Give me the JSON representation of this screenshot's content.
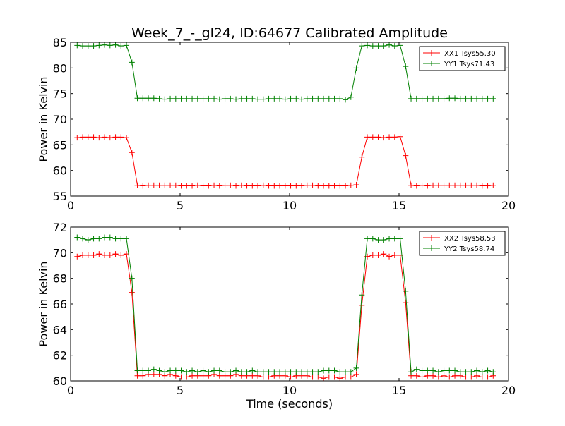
{
  "chart_data": [
    {
      "type": "line",
      "title": "Week_7_-_gl24, ID:64677 Calibrated Amplitude",
      "xlabel": "",
      "ylabel": "Power in Kelvin",
      "xlim": [
        0,
        20
      ],
      "ylim": [
        55,
        85
      ],
      "xticks": [
        "0",
        "5",
        "10",
        "15",
        "20"
      ],
      "yticks": [
        "55",
        "60",
        "65",
        "70",
        "75",
        "80",
        "85"
      ],
      "grid": false,
      "legend_position": "top-right",
      "x": [
        0.3,
        0.55,
        0.8,
        1.05,
        1.3,
        1.55,
        1.8,
        2.05,
        2.3,
        2.55,
        2.8,
        3.05,
        3.3,
        3.55,
        3.8,
        4.05,
        4.3,
        4.55,
        4.8,
        5.05,
        5.3,
        5.55,
        5.8,
        6.05,
        6.3,
        6.55,
        6.8,
        7.05,
        7.3,
        7.55,
        7.8,
        8.05,
        8.3,
        8.55,
        8.8,
        9.05,
        9.3,
        9.55,
        9.8,
        10.05,
        10.3,
        10.55,
        10.8,
        11.05,
        11.3,
        11.55,
        11.8,
        12.05,
        12.3,
        12.55,
        12.8,
        13.05,
        13.3,
        13.55,
        13.8,
        14.05,
        14.3,
        14.55,
        14.8,
        15.05,
        15.3,
        15.55,
        15.8,
        16.05,
        16.3,
        16.55,
        16.8,
        17.05,
        17.3,
        17.55,
        17.8,
        18.05,
        18.3,
        18.55,
        18.8,
        19.05,
        19.3
      ],
      "series": [
        {
          "name": "XX1 Tsys55.30",
          "color": "#ff0000",
          "values": [
            66.4,
            66.5,
            66.5,
            66.5,
            66.4,
            66.5,
            66.4,
            66.5,
            66.5,
            66.4,
            63.5,
            57.1,
            57.0,
            57.1,
            57.1,
            57.1,
            57.1,
            57.1,
            57.1,
            57.0,
            57.0,
            57.0,
            57.1,
            57.0,
            57.0,
            57.1,
            57.0,
            57.1,
            57.1,
            57.0,
            57.1,
            57.0,
            57.0,
            57.0,
            57.1,
            57.0,
            57.0,
            57.0,
            57.0,
            57.0,
            57.0,
            57.0,
            57.1,
            57.1,
            57.0,
            57.0,
            57.0,
            57.0,
            57.0,
            57.0,
            57.1,
            57.2,
            62.6,
            66.5,
            66.5,
            66.5,
            66.4,
            66.5,
            66.5,
            66.6,
            62.9,
            57.1,
            57.0,
            57.1,
            57.0,
            57.1,
            57.1,
            57.1,
            57.1,
            57.1,
            57.1,
            57.1,
            57.1,
            57.1,
            57.0,
            57.0,
            57.1
          ]
        },
        {
          "name": "YY1 Tsys71.43",
          "color": "#008000",
          "values": [
            84.4,
            84.3,
            84.3,
            84.3,
            84.4,
            84.5,
            84.4,
            84.5,
            84.3,
            84.4,
            81.1,
            74.1,
            74.1,
            74.1,
            74.1,
            74.0,
            73.9,
            74.0,
            74.0,
            74.0,
            74.0,
            74.0,
            74.0,
            74.0,
            74.0,
            74.0,
            73.9,
            74.0,
            74.0,
            73.9,
            74.0,
            74.0,
            74.0,
            73.9,
            73.9,
            74.0,
            74.0,
            74.0,
            73.9,
            74.0,
            74.0,
            73.9,
            74.0,
            74.0,
            74.0,
            74.0,
            74.0,
            74.0,
            74.0,
            73.8,
            74.3,
            80.0,
            84.3,
            84.4,
            84.3,
            84.3,
            84.3,
            84.5,
            84.3,
            84.4,
            80.3,
            74.0,
            74.0,
            74.0,
            74.0,
            74.0,
            74.0,
            74.0,
            74.1,
            74.1,
            74.0,
            74.0,
            74.0,
            74.0,
            74.0,
            74.0,
            74.0
          ]
        }
      ]
    },
    {
      "type": "line",
      "title": "",
      "xlabel": "Time (seconds)",
      "ylabel": "Power in Kelvin",
      "xlim": [
        0,
        20
      ],
      "ylim": [
        60,
        72
      ],
      "xticks": [
        "0",
        "5",
        "10",
        "15",
        "20"
      ],
      "yticks": [
        "60",
        "62",
        "64",
        "66",
        "68",
        "70",
        "72"
      ],
      "grid": false,
      "legend_position": "top-right",
      "x": [
        0.3,
        0.55,
        0.8,
        1.05,
        1.3,
        1.55,
        1.8,
        2.05,
        2.3,
        2.55,
        2.8,
        3.05,
        3.3,
        3.55,
        3.8,
        4.05,
        4.3,
        4.55,
        4.8,
        5.05,
        5.3,
        5.55,
        5.8,
        6.05,
        6.3,
        6.55,
        6.8,
        7.05,
        7.3,
        7.55,
        7.8,
        8.05,
        8.3,
        8.55,
        8.8,
        9.05,
        9.3,
        9.55,
        9.8,
        10.05,
        10.3,
        10.55,
        10.8,
        11.05,
        11.3,
        11.55,
        11.8,
        12.05,
        12.3,
        12.55,
        12.8,
        13.05,
        13.3,
        13.55,
        13.8,
        14.05,
        14.3,
        14.55,
        14.8,
        15.05,
        15.3,
        15.55,
        15.8,
        16.05,
        16.3,
        16.55,
        16.8,
        17.05,
        17.3,
        17.55,
        17.8,
        18.05,
        18.3,
        18.55,
        18.8,
        19.05,
        19.3
      ],
      "series": [
        {
          "name": "XX2 Tsys58.53",
          "color": "#ff0000",
          "values": [
            69.7,
            69.8,
            69.8,
            69.8,
            69.9,
            69.8,
            69.8,
            69.9,
            69.8,
            69.9,
            66.9,
            60.4,
            60.4,
            60.5,
            60.5,
            60.5,
            60.4,
            60.5,
            60.4,
            60.3,
            60.3,
            60.4,
            60.4,
            60.4,
            60.4,
            60.5,
            60.4,
            60.4,
            60.4,
            60.5,
            60.4,
            60.4,
            60.4,
            60.4,
            60.3,
            60.3,
            60.4,
            60.4,
            60.4,
            60.3,
            60.4,
            60.4,
            60.4,
            60.3,
            60.3,
            60.2,
            60.3,
            60.3,
            60.2,
            60.3,
            60.3,
            60.5,
            65.9,
            69.7,
            69.8,
            69.8,
            69.9,
            69.7,
            69.8,
            69.8,
            66.1,
            60.4,
            60.4,
            60.3,
            60.4,
            60.4,
            60.3,
            60.4,
            60.3,
            60.4,
            60.4,
            60.3,
            60.3,
            60.4,
            60.3,
            60.3,
            60.4
          ]
        },
        {
          "name": "YY2 Tsys58.74",
          "color": "#008000",
          "values": [
            71.2,
            71.1,
            71.0,
            71.1,
            71.1,
            71.2,
            71.2,
            71.1,
            71.1,
            71.1,
            68.0,
            60.8,
            60.8,
            60.8,
            60.9,
            60.8,
            60.7,
            60.8,
            60.8,
            60.8,
            60.7,
            60.8,
            60.7,
            60.8,
            60.7,
            60.8,
            60.8,
            60.7,
            60.7,
            60.8,
            60.7,
            60.7,
            60.8,
            60.7,
            60.7,
            60.7,
            60.7,
            60.7,
            60.7,
            60.7,
            60.7,
            60.7,
            60.7,
            60.7,
            60.7,
            60.8,
            60.8,
            60.8,
            60.7,
            60.7,
            60.7,
            61.0,
            66.7,
            71.1,
            71.1,
            71.0,
            71.0,
            71.1,
            71.1,
            71.1,
            67.0,
            60.7,
            60.9,
            60.8,
            60.8,
            60.8,
            60.7,
            60.8,
            60.8,
            60.8,
            60.7,
            60.7,
            60.7,
            60.8,
            60.7,
            60.8,
            60.7
          ]
        }
      ]
    }
  ]
}
